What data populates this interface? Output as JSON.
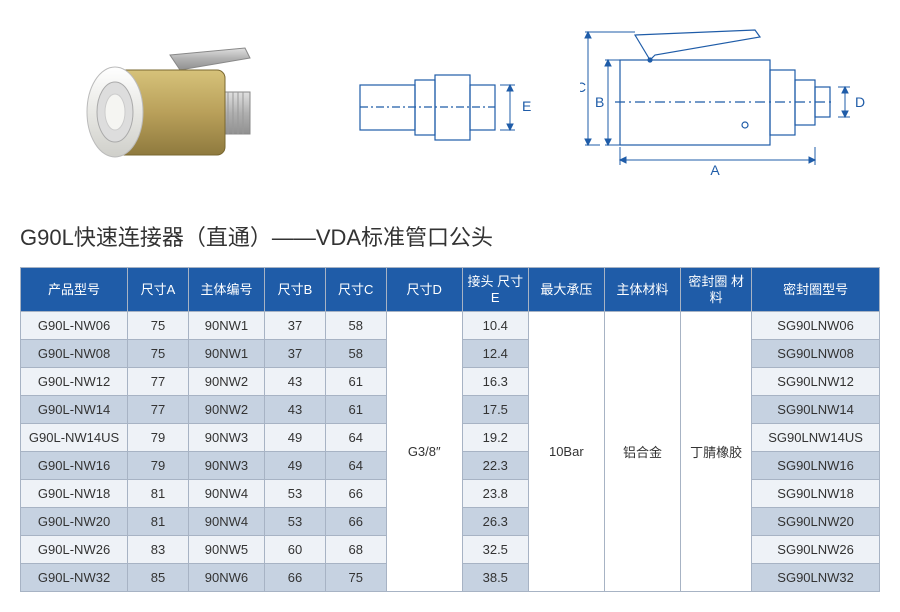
{
  "title": "G90L快速连接器（直通）——VDA标准管口公头",
  "figures": {
    "render_label": "render",
    "schematic1_label": "schematic-side",
    "schematic2_label": "schematic-front",
    "dim_labels": {
      "A": "A",
      "B": "B",
      "C": "C",
      "D": "D",
      "E": "E"
    },
    "colors": {
      "brass": "#b9a05a",
      "brass_dark": "#8f7a3e",
      "white": "#f5f5f2",
      "steel": "#c0c0c0",
      "line": "#1f5ca8"
    }
  },
  "table": {
    "headers": [
      "产品型号",
      "尺寸A",
      "主体编号",
      "尺寸B",
      "尺寸C",
      "尺寸D",
      "接头\n尺寸E",
      "最大承压",
      "主体材料",
      "密封圈\n材料",
      "密封圈型号"
    ],
    "merged": {
      "dimD": "G3/8″",
      "maxPressure": "10Bar",
      "bodyMaterial": "铝合金",
      "sealMaterial": "丁腈橡胶"
    },
    "rows": [
      {
        "model": "G90L-NW06",
        "A": "75",
        "body": "90NW1",
        "B": "37",
        "C": "58",
        "E": "10.4",
        "seal": "SG90LNW06"
      },
      {
        "model": "G90L-NW08",
        "A": "75",
        "body": "90NW1",
        "B": "37",
        "C": "58",
        "E": "12.4",
        "seal": "SG90LNW08"
      },
      {
        "model": "G90L-NW12",
        "A": "77",
        "body": "90NW2",
        "B": "43",
        "C": "61",
        "E": "16.3",
        "seal": "SG90LNW12"
      },
      {
        "model": "G90L-NW14",
        "A": "77",
        "body": "90NW2",
        "B": "43",
        "C": "61",
        "E": "17.5",
        "seal": "SG90LNW14"
      },
      {
        "model": "G90L-NW14US",
        "A": "79",
        "body": "90NW3",
        "B": "49",
        "C": "64",
        "E": "19.2",
        "seal": "SG90LNW14US"
      },
      {
        "model": "G90L-NW16",
        "A": "79",
        "body": "90NW3",
        "B": "49",
        "C": "64",
        "E": "22.3",
        "seal": "SG90LNW16"
      },
      {
        "model": "G90L-NW18",
        "A": "81",
        "body": "90NW4",
        "B": "53",
        "C": "66",
        "E": "23.8",
        "seal": "SG90LNW18"
      },
      {
        "model": "G90L-NW20",
        "A": "81",
        "body": "90NW4",
        "B": "53",
        "C": "66",
        "E": "26.3",
        "seal": "SG90LNW20"
      },
      {
        "model": "G90L-NW26",
        "A": "83",
        "body": "90NW5",
        "B": "60",
        "C": "68",
        "E": "32.5",
        "seal": "SG90LNW26"
      },
      {
        "model": "G90L-NW32",
        "A": "85",
        "body": "90NW6",
        "B": "66",
        "C": "75",
        "E": "38.5",
        "seal": "SG90LNW32"
      }
    ]
  },
  "style": {
    "header_bg": "#1f5ca8",
    "header_color": "#ffffff",
    "row_odd_bg": "#eef2f7",
    "row_even_bg": "#c6d2e1",
    "border_color": "#a7b3c4",
    "title_fontsize": 22,
    "cell_fontsize": 13
  }
}
